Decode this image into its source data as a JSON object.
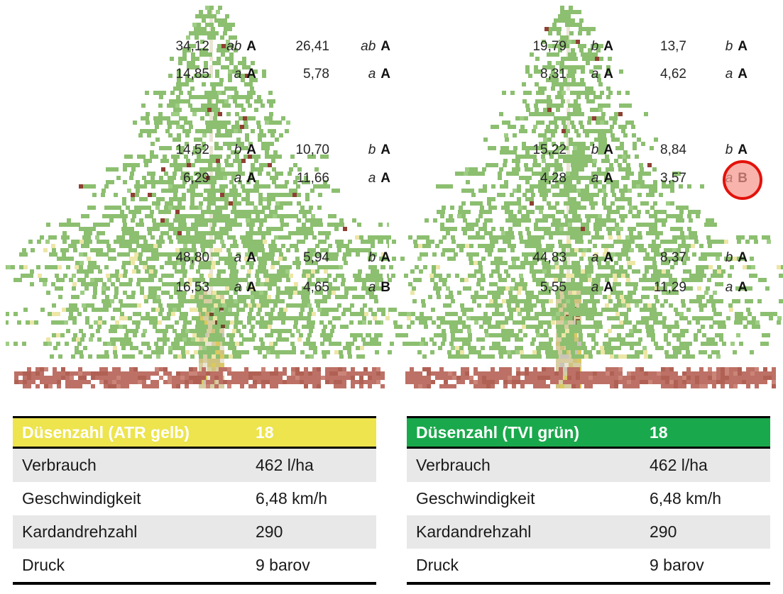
{
  "trees": [
    {
      "name": "ATR gelb",
      "annotations": [
        {
          "value": "34,12",
          "sig": "ab",
          "group": "A"
        },
        {
          "value": "26,41",
          "sig": "ab",
          "group": "A"
        },
        {
          "value": "14,85",
          "sig": "a",
          "group": "A"
        },
        {
          "value": "5,78",
          "sig": "a",
          "group": "A"
        },
        {
          "value": "14,52",
          "sig": "b",
          "group": "A"
        },
        {
          "value": "10,70",
          "sig": "b",
          "group": "A"
        },
        {
          "value": "6,29",
          "sig": "a",
          "group": "A"
        },
        {
          "value": "11,66",
          "sig": "a",
          "group": "A"
        },
        {
          "value": "48,80",
          "sig": "a",
          "group": "A"
        },
        {
          "value": "5,94",
          "sig": "b",
          "group": "A"
        },
        {
          "value": "16,53",
          "sig": "a",
          "group": "A"
        },
        {
          "value": "4,65",
          "sig": "a",
          "group": "B"
        }
      ]
    },
    {
      "name": "TVI grün",
      "annotations": [
        {
          "value": "19,79",
          "sig": "b",
          "group": "A"
        },
        {
          "value": "13,7",
          "sig": "b",
          "group": "A"
        },
        {
          "value": "8,31",
          "sig": "a",
          "group": "A"
        },
        {
          "value": "4,62",
          "sig": "a",
          "group": "A"
        },
        {
          "value": "15,22",
          "sig": "b",
          "group": "A"
        },
        {
          "value": "8,84",
          "sig": "b",
          "group": "A"
        },
        {
          "value": "4,28",
          "sig": "a",
          "group": "A"
        },
        {
          "value": "3,57",
          "sig": "a",
          "group": "B"
        },
        {
          "value": "44,83",
          "sig": "a",
          "group": "A"
        },
        {
          "value": "8,37",
          "sig": "b",
          "group": "A"
        },
        {
          "value": "5,55",
          "sig": "a",
          "group": "A"
        },
        {
          "value": "11,29",
          "sig": "a",
          "group": "A"
        }
      ],
      "highlight": {
        "circled_value": "3,57",
        "circled_letter": "B",
        "ring_color": "#e3120b",
        "fill_color": "rgba(245,150,140,0.72)"
      }
    }
  ],
  "tree_palette": {
    "foliage": "#8cbf70",
    "foliage_light": "#9ecd84",
    "speckle_yellow": "#ede6a6",
    "speckle_red": "#8e4032",
    "trunk": "#d7cda1",
    "trunk_dark": "#cfc27e",
    "trunk_yellow": "#dbc95f",
    "trunk_gray": "#c9c4b8",
    "knot": "#6f4b2b",
    "stem": "#e9e5d3",
    "ground": "#bd7065",
    "ground_dark": "#b06154",
    "ground_light": "#cb8478"
  },
  "tables": [
    {
      "header": {
        "label": "Düsenzahl (ATR gelb)",
        "value": "18",
        "color": "#ede44e"
      },
      "rows": [
        {
          "label": "Verbrauch",
          "value": "462 l/ha"
        },
        {
          "label": "Geschwindigkeit",
          "value": "6,48 km/h"
        },
        {
          "label": "Kardandrehzahl",
          "value": "290"
        },
        {
          "label": "Druck",
          "value": "9 barov"
        }
      ]
    },
    {
      "header": {
        "label": "Düsenzahl (TVI grün)",
        "value": "18",
        "color": "#1aa84c"
      },
      "rows": [
        {
          "label": "Verbrauch",
          "value": "462 l/ha"
        },
        {
          "label": "Geschwindigkeit",
          "value": "6,48 km/h"
        },
        {
          "label": "Kardandrehzahl",
          "value": "290"
        },
        {
          "label": "Druck",
          "value": "9 barov"
        }
      ]
    }
  ]
}
